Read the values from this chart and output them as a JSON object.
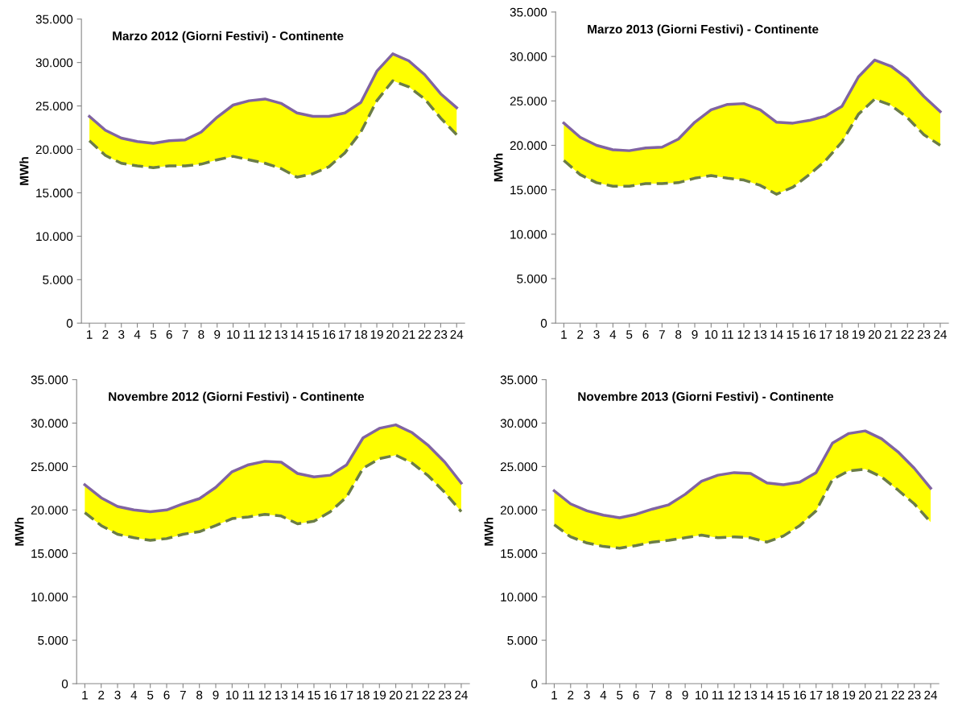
{
  "chart_data": [
    {
      "type": "line",
      "title": "Marzo 2012 (Giorni Festivi) - Continente",
      "ylabel": "MWh",
      "categories": [
        "1",
        "2",
        "3",
        "4",
        "5",
        "6",
        "7",
        "8",
        "9",
        "10",
        "11",
        "12",
        "13",
        "14",
        "15",
        "16",
        "17",
        "18",
        "19",
        "20",
        "21",
        "22",
        "23",
        "24"
      ],
      "ylim": [
        0,
        35000
      ],
      "yticks": [
        {
          "value": 0,
          "label": "0"
        },
        {
          "value": 5000,
          "label": "5.000"
        },
        {
          "value": 10000,
          "label": "10.000"
        },
        {
          "value": 15000,
          "label": "15.000"
        },
        {
          "value": 20000,
          "label": "20.000"
        },
        {
          "value": 25000,
          "label": "25.000"
        },
        {
          "value": 30000,
          "label": "30.000"
        },
        {
          "value": 35000,
          "label": "35.000"
        }
      ],
      "grid": false,
      "legend": false,
      "series": [
        {
          "color": "#8064a2",
          "line_style": "solid",
          "values": [
            23800,
            22200,
            21300,
            20900,
            20700,
            21000,
            21100,
            22000,
            23700,
            25100,
            25600,
            25800,
            25300,
            24200,
            23800,
            23800,
            24200,
            25400,
            29000,
            31000,
            30200,
            28600,
            26400,
            24800
          ],
          "lower": [
            21000,
            19300,
            18400,
            18100,
            17900,
            18100,
            18100,
            18300,
            18800,
            19200,
            18800,
            18400,
            17800,
            16800,
            17200,
            18000,
            19600,
            22000,
            25600,
            27900,
            27200,
            25800,
            23600,
            21700
          ],
          "upper": [
            23800,
            22200,
            21300,
            20900,
            20700,
            21000,
            21100,
            22000,
            23700,
            25100,
            25600,
            25800,
            25300,
            24200,
            23800,
            23800,
            24200,
            25400,
            29000,
            31000,
            30200,
            28600,
            26400,
            24800
          ]
        },
        {
          "color": "#6b7d46",
          "line_style": "dashed",
          "values": [
            21000,
            19300,
            18400,
            18100,
            17900,
            18100,
            18100,
            18300,
            18800,
            19200,
            18800,
            18400,
            17800,
            16800,
            17200,
            18000,
            19600,
            22000,
            25600,
            27900,
            27200,
            25800,
            23600,
            21700
          ]
        }
      ]
    },
    {
      "type": "line",
      "title": "Marzo 2013 (Giorni Festivi) - Continente",
      "ylabel": "MWh",
      "categories": [
        "1",
        "2",
        "3",
        "4",
        "5",
        "6",
        "7",
        "8",
        "9",
        "10",
        "11",
        "12",
        "13",
        "14",
        "15",
        "16",
        "17",
        "18",
        "19",
        "20",
        "21",
        "22",
        "23",
        "24"
      ],
      "ylim": [
        0,
        35000
      ],
      "yticks": [
        {
          "value": 0,
          "label": "0"
        },
        {
          "value": 5000,
          "label": "5.000"
        },
        {
          "value": 10000,
          "label": "10.000"
        },
        {
          "value": 15000,
          "label": "15.000"
        },
        {
          "value": 20000,
          "label": "20.000"
        },
        {
          "value": 25000,
          "label": "25.000"
        },
        {
          "value": 30000,
          "label": "30.000"
        },
        {
          "value": 35000,
          "label": "35.000"
        }
      ],
      "grid": false,
      "legend": false,
      "series": [
        {
          "color": "#8064a2",
          "line_style": "solid",
          "values": [
            22500,
            20900,
            20000,
            19500,
            19400,
            19700,
            19800,
            20700,
            22600,
            24000,
            24600,
            24700,
            24000,
            22600,
            22500,
            22800,
            23300,
            24400,
            27700,
            29600,
            28900,
            27500,
            25500,
            23800
          ],
          "lower": [
            18300,
            16700,
            15800,
            15400,
            15400,
            15700,
            15700,
            15800,
            16300,
            16600,
            16300,
            16100,
            15500,
            14500,
            15300,
            16700,
            18300,
            20400,
            23500,
            25200,
            24500,
            23100,
            21200,
            20000
          ],
          "upper": [
            22500,
            20900,
            20000,
            19500,
            19400,
            19700,
            19800,
            20700,
            22600,
            24000,
            24600,
            24700,
            24000,
            22600,
            22500,
            22800,
            23300,
            24400,
            27700,
            29600,
            28900,
            27500,
            25500,
            23800
          ]
        },
        {
          "color": "#6b7d46",
          "line_style": "dashed",
          "values": [
            18300,
            16700,
            15800,
            15400,
            15400,
            15700,
            15700,
            15800,
            16300,
            16600,
            16300,
            16100,
            15500,
            14500,
            15300,
            16700,
            18300,
            20400,
            23500,
            25200,
            24500,
            23100,
            21200,
            20000
          ]
        }
      ]
    },
    {
      "type": "line",
      "title": "Novembre 2012 (Giorni Festivi) - Continente",
      "ylabel": "MWh",
      "categories": [
        "1",
        "2",
        "3",
        "4",
        "5",
        "6",
        "7",
        "8",
        "9",
        "10",
        "11",
        "12",
        "13",
        "14",
        "15",
        "16",
        "17",
        "18",
        "19",
        "20",
        "21",
        "22",
        "23",
        "24"
      ],
      "ylim": [
        0,
        35000
      ],
      "yticks": [
        {
          "value": 0,
          "label": "0"
        },
        {
          "value": 5000,
          "label": "5.000"
        },
        {
          "value": 10000,
          "label": "10.000"
        },
        {
          "value": 15000,
          "label": "15.000"
        },
        {
          "value": 20000,
          "label": "20.000"
        },
        {
          "value": 25000,
          "label": "25.000"
        },
        {
          "value": 30000,
          "label": "30.000"
        },
        {
          "value": 35000,
          "label": "35.000"
        }
      ],
      "grid": false,
      "legend": false,
      "series": [
        {
          "color": "#8064a2",
          "line_style": "solid",
          "values": [
            22900,
            21400,
            20400,
            20000,
            19800,
            20000,
            20700,
            21300,
            22600,
            24400,
            25200,
            25600,
            25500,
            24200,
            23800,
            24000,
            25200,
            28300,
            29400,
            29800,
            28900,
            27400,
            25500,
            23100
          ],
          "lower": [
            19700,
            18200,
            17200,
            16800,
            16500,
            16700,
            17200,
            17500,
            18200,
            19000,
            19200,
            19500,
            19300,
            18400,
            18700,
            19800,
            21500,
            24800,
            25900,
            26300,
            25400,
            23900,
            22000,
            19800
          ],
          "upper": [
            22900,
            21400,
            20400,
            20000,
            19800,
            20000,
            20700,
            21300,
            22600,
            24400,
            25200,
            25600,
            25500,
            24200,
            23800,
            24000,
            25200,
            28300,
            29400,
            29800,
            28900,
            27400,
            25500,
            23100
          ]
        },
        {
          "color": "#6b7d46",
          "line_style": "dashed",
          "values": [
            19700,
            18200,
            17200,
            16800,
            16500,
            16700,
            17200,
            17500,
            18200,
            19000,
            19200,
            19500,
            19300,
            18400,
            18700,
            19800,
            21500,
            24800,
            25900,
            26300,
            25400,
            23900,
            22000,
            19800
          ]
        }
      ]
    },
    {
      "type": "line",
      "title": "Novembre 2013 (Giorni Festivi) - Continente",
      "ylabel": "MWh",
      "categories": [
        "1",
        "2",
        "3",
        "4",
        "5",
        "6",
        "7",
        "8",
        "9",
        "10",
        "11",
        "12",
        "13",
        "14",
        "15",
        "16",
        "17",
        "18",
        "19",
        "20",
        "21",
        "22",
        "23",
        "24"
      ],
      "ylim": [
        0,
        35000
      ],
      "yticks": [
        {
          "value": 0,
          "label": "0"
        },
        {
          "value": 5000,
          "label": "5.000"
        },
        {
          "value": 10000,
          "label": "10.000"
        },
        {
          "value": 15000,
          "label": "15.000"
        },
        {
          "value": 20000,
          "label": "20.000"
        },
        {
          "value": 25000,
          "label": "25.000"
        },
        {
          "value": 30000,
          "label": "30.000"
        },
        {
          "value": 35000,
          "label": "35.000"
        }
      ],
      "grid": false,
      "legend": false,
      "series": [
        {
          "color": "#8064a2",
          "line_style": "solid",
          "values": [
            22200,
            20700,
            19900,
            19400,
            19100,
            19500,
            20100,
            20600,
            21800,
            23300,
            24000,
            24300,
            24200,
            23100,
            22900,
            23200,
            24300,
            27700,
            28800,
            29100,
            28200,
            26700,
            24800,
            22500
          ],
          "lower": [
            18300,
            16900,
            16200,
            15800,
            15600,
            15900,
            16300,
            16500,
            16800,
            17100,
            16800,
            16900,
            16800,
            16300,
            17000,
            18200,
            19900,
            23500,
            24500,
            24700,
            23800,
            22300,
            20700,
            18600
          ],
          "upper": [
            22200,
            20700,
            19900,
            19400,
            19100,
            19500,
            20100,
            20600,
            21800,
            23300,
            24000,
            24300,
            24200,
            23100,
            22900,
            23200,
            24300,
            27700,
            28800,
            29100,
            28200,
            26700,
            24800,
            22500
          ]
        },
        {
          "color": "#6b7d46",
          "line_style": "dashed",
          "values": [
            18300,
            16900,
            16200,
            15800,
            15600,
            15900,
            16300,
            16500,
            16800,
            17100,
            16800,
            16900,
            16800,
            16300,
            17000,
            18200,
            19900,
            23500,
            24500,
            24700,
            23800,
            22300,
            20700,
            18600
          ]
        }
      ]
    }
  ]
}
